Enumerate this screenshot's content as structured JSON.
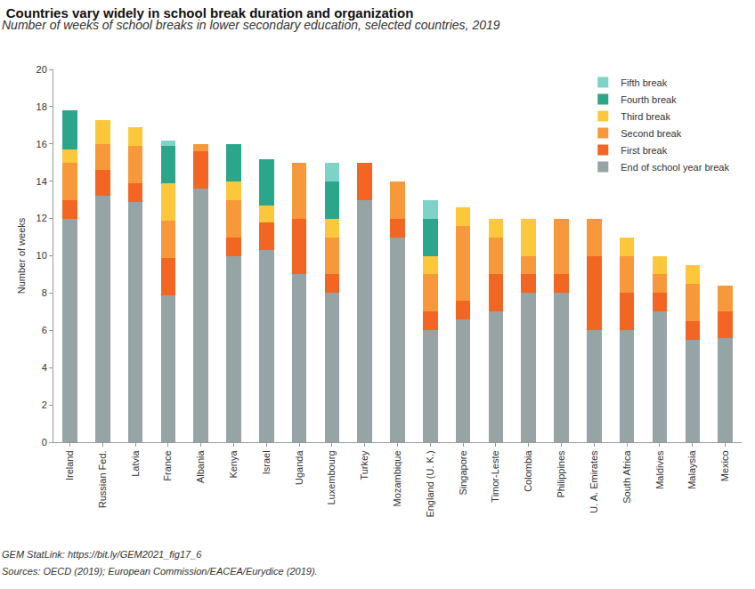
{
  "chart_data": {
    "type": "bar",
    "stacked": true,
    "title": "Countries vary widely in school break duration and organization",
    "subtitle": "Number of weeks of school breaks in lower secondary education, selected countries, 2019",
    "y_label": "Number of weeks",
    "annotations": [
      "GEM StatLink: https://bit.ly/GEM2021_fig17_6",
      "Sources: OECD (2019); European Commission/EACEA/Eurydice (2019)."
    ],
    "categories": [
      "Ireland",
      "Russian Fed.",
      "Latvia",
      "France",
      "Albania",
      "Kenya",
      "Israel",
      "Uganda",
      "Luxembourg",
      "Turkey",
      "Mozambique",
      "England (U. K.)",
      "Singapore",
      "Timor-Leste",
      "Colombia",
      "Philippines",
      "U. A. Emirates",
      "South Africa",
      "Maldives",
      "Malaysia",
      "Mexico"
    ],
    "series": [
      {
        "name": "End of school year break",
        "color": "#96a4a5",
        "values": [
          12,
          13.2,
          12.9,
          7.9,
          13.6,
          10,
          10.3,
          9,
          8,
          13,
          11,
          6,
          6.6,
          7,
          8,
          8,
          6,
          6,
          7,
          5.5,
          5.6
        ]
      },
      {
        "name": "First break",
        "color": "#f26522",
        "values": [
          1,
          1.4,
          1,
          2,
          2,
          1,
          1.5,
          3,
          1,
          2,
          1,
          1,
          1,
          2,
          1,
          1,
          4,
          2,
          1,
          1,
          1.4
        ]
      },
      {
        "name": "Second break",
        "color": "#f7983a",
        "values": [
          2,
          1.4,
          2,
          2,
          0.4,
          2,
          null,
          3,
          2,
          null,
          2,
          2,
          4,
          2,
          1,
          3,
          2,
          2,
          1,
          2,
          1.4
        ]
      },
      {
        "name": "Third break",
        "color": "#fdc73c",
        "values": [
          0.7,
          1.3,
          1,
          2,
          null,
          1,
          0.9,
          null,
          1,
          null,
          null,
          1,
          1,
          1,
          2,
          null,
          null,
          1,
          1,
          1,
          null
        ]
      },
      {
        "name": "Fourth break",
        "color": "#2ba68a",
        "values": [
          2.1,
          null,
          null,
          2,
          null,
          2,
          2.5,
          null,
          2,
          null,
          null,
          2,
          null,
          null,
          null,
          null,
          null,
          null,
          null,
          null,
          null
        ]
      },
      {
        "name": "Fifth break",
        "color": "#7dd3c8",
        "values": [
          null,
          null,
          null,
          0.3,
          null,
          null,
          null,
          null,
          1,
          null,
          null,
          1,
          null,
          null,
          null,
          null,
          null,
          null,
          null,
          null,
          null
        ]
      }
    ],
    "ylim": [
      0,
      20
    ],
    "yticks": [
      0,
      2,
      4,
      6,
      8,
      10,
      12,
      14,
      16,
      18,
      20
    ],
    "grid": false,
    "legend": "top right"
  }
}
